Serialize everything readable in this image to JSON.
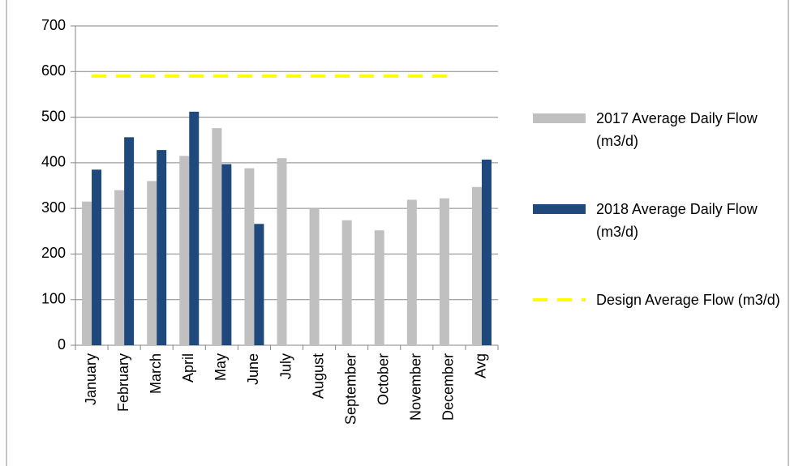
{
  "chart_data": {
    "type": "bar",
    "categories": [
      "January",
      "February",
      "March",
      "April",
      "May",
      "June",
      "July",
      "August",
      "September",
      "October",
      "November",
      "December",
      "Avg"
    ],
    "series": [
      {
        "name": "2017 Average Daily Flow (m3/d)",
        "type": "bar",
        "color": "#c0c0c0",
        "values": [
          315,
          340,
          360,
          415,
          476,
          388,
          410,
          300,
          274,
          252,
          319,
          322,
          347
        ]
      },
      {
        "name": "2018 Average Daily Flow (m3/d)",
        "type": "bar",
        "color": "#1f497d",
        "values": [
          385,
          456,
          428,
          512,
          397,
          266,
          null,
          null,
          null,
          null,
          null,
          null,
          407
        ]
      },
      {
        "name": "Design Average Flow (m3/d)",
        "type": "line",
        "color": "#ffff00",
        "dashed": true,
        "values": [
          590,
          590,
          590,
          590,
          590,
          590,
          590,
          590,
          590,
          590,
          590,
          590,
          null
        ]
      }
    ],
    "ylim": [
      0,
      700
    ],
    "yticks": [
      0,
      100,
      200,
      300,
      400,
      500,
      600,
      700
    ],
    "grid": true,
    "legend": "right"
  }
}
